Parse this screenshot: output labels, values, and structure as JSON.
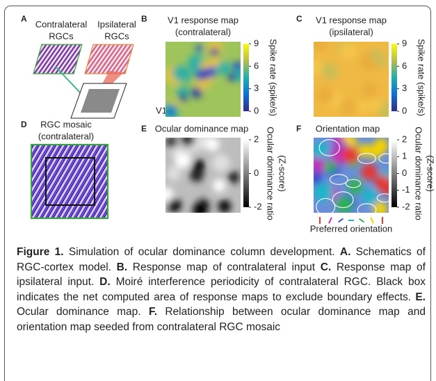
{
  "panels": {
    "A": {
      "label": "A",
      "left_title": [
        "Contralateral",
        "RGCs"
      ],
      "right_title": [
        "Ipsilateral",
        "RGCs"
      ],
      "sheet_label": "V1"
    },
    "B": {
      "label": "B",
      "title": [
        "V1 response map",
        "(contralateral)"
      ],
      "colorbar_ticks": [
        9,
        6,
        3,
        0
      ],
      "colorbar_label": [
        "Spike rate (spike/s)"
      ]
    },
    "C": {
      "label": "C",
      "title": [
        "V1 response map",
        "(ipsilateral)"
      ],
      "colorbar_ticks": [
        9,
        6,
        3,
        0
      ],
      "colorbar_label": [
        "Spike rate (spike/s)"
      ]
    },
    "D": {
      "label": "D",
      "title": [
        "RGC mosaic",
        "(contralateral)"
      ]
    },
    "E": {
      "label": "E",
      "title": [
        "Ocular dominance map"
      ],
      "colorbar_ticks": [
        2,
        0,
        -2
      ],
      "colorbar_label": [
        "Ocular dominance ratio",
        "(Z-score)"
      ]
    },
    "F": {
      "label": "F",
      "title": [
        "Orientation map"
      ],
      "colorbar_ticks": [
        2,
        1,
        0,
        -1,
        -2
      ],
      "colorbar_label": [
        "Ocular dominance ratio",
        "(Z-score)"
      ],
      "legend": "Preferred orientation"
    }
  },
  "caption": {
    "figure_label": "Figure 1.",
    "text": "Simulation of ocular dominance column development.",
    "items": [
      {
        "label": "A.",
        "text": "Schematics of RGC-cortex model."
      },
      {
        "label": "B.",
        "text": "Response map of contralateral input"
      },
      {
        "label": "C.",
        "text": "Response map of ipsilateral input."
      },
      {
        "label": "D.",
        "text": "Moiré interference periodicity of contralateral RGC. Black box indicates the net computed area of response maps to exclude boundary effects."
      },
      {
        "label": "E.",
        "text": "Ocular dominance map."
      },
      {
        "label": "F.",
        "text": "Relationship between ocular dominance map and orientation map seeded from contralateral RGC mosaic"
      }
    ]
  }
}
